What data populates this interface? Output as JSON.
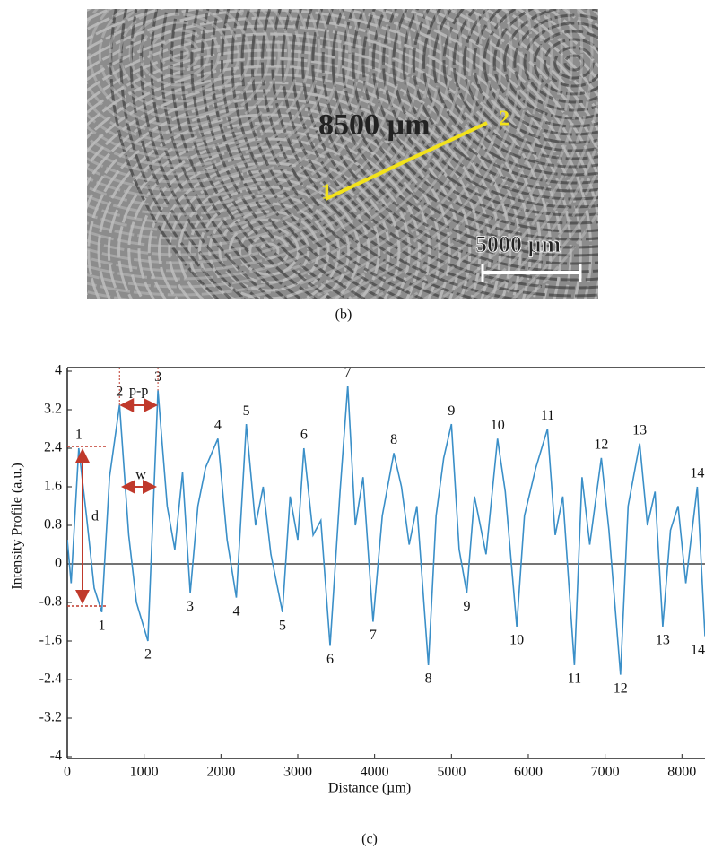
{
  "image": {
    "length_label": "8500 µm",
    "point_1": "1",
    "point_2": "2",
    "scale_label": "5000 µm",
    "caption": "(b)"
  },
  "chart_data": {
    "type": "line",
    "caption": "(c)",
    "x_label": "Distance (µm)",
    "y_label": "Intensity Profile (a.u.)",
    "x": [
      0,
      50,
      150,
      250,
      350,
      450,
      550,
      680,
      800,
      900,
      1050,
      1180,
      1300,
      1400,
      1500,
      1600,
      1700,
      1800,
      1960,
      2080,
      2200,
      2330,
      2450,
      2550,
      2650,
      2800,
      2900,
      3000,
      3080,
      3200,
      3300,
      3420,
      3550,
      3650,
      3750,
      3850,
      3980,
      4100,
      4250,
      4350,
      4450,
      4550,
      4700,
      4800,
      4900,
      5000,
      5100,
      5200,
      5300,
      5450,
      5600,
      5700,
      5850,
      5950,
      6100,
      6250,
      6350,
      6450,
      6600,
      6700,
      6800,
      6950,
      7050,
      7200,
      7300,
      7450,
      7550,
      7650,
      7750,
      7850,
      7950,
      8050,
      8200,
      8300
    ],
    "values": [
      0.5,
      -0.4,
      2.4,
      1.0,
      -0.5,
      -1.0,
      1.8,
      3.3,
      0.6,
      -0.8,
      -1.6,
      3.6,
      1.2,
      0.3,
      1.9,
      -0.6,
      1.2,
      2.0,
      2.6,
      0.5,
      -0.7,
      2.9,
      0.8,
      1.6,
      0.2,
      -1.0,
      1.4,
      0.5,
      2.4,
      0.6,
      0.9,
      -1.7,
      1.5,
      3.7,
      0.8,
      1.8,
      -1.2,
      1.0,
      2.3,
      1.6,
      0.4,
      1.2,
      -2.1,
      1.0,
      2.2,
      2.9,
      0.3,
      -0.6,
      1.4,
      0.2,
      2.6,
      1.5,
      -1.3,
      1.0,
      2.0,
      2.8,
      0.6,
      1.4,
      -2.1,
      1.8,
      0.4,
      2.2,
      0.7,
      -2.3,
      1.2,
      2.5,
      0.8,
      1.5,
      -1.3,
      0.7,
      1.2,
      -0.4,
      1.6,
      -1.5
    ],
    "color": "#3a8fc8",
    "xlim": [
      0,
      8300
    ],
    "xticks": [
      0,
      1000,
      2000,
      3000,
      4000,
      5000,
      6000,
      7000,
      8000
    ],
    "ylim": [
      -4,
      4
    ],
    "yticks": [
      4,
      3.2,
      2.4,
      1.6,
      0.8,
      0,
      -0.8,
      -1.6,
      -2.4,
      -3.2,
      -4
    ],
    "grid": false,
    "annotations": [
      {
        "text": "1",
        "x": 150,
        "y": 2.4
      },
      {
        "text": "2",
        "x": 680,
        "y": 3.3
      },
      {
        "text": "3",
        "x": 1180,
        "y": 3.6
      },
      {
        "text": "4",
        "x": 1960,
        "y": 2.6
      },
      {
        "text": "5",
        "x": 2330,
        "y": 2.9
      },
      {
        "text": "6",
        "x": 3080,
        "y": 2.4
      },
      {
        "text": "7",
        "x": 3650,
        "y": 3.7
      },
      {
        "text": "8",
        "x": 4250,
        "y": 2.3
      },
      {
        "text": "9",
        "x": 5000,
        "y": 2.9
      },
      {
        "text": "10",
        "x": 5600,
        "y": 2.6
      },
      {
        "text": "11",
        "x": 6250,
        "y": 2.8
      },
      {
        "text": "12",
        "x": 6950,
        "y": 2.2
      },
      {
        "text": "13",
        "x": 7450,
        "y": 2.5
      },
      {
        "text": "14",
        "x": 8200,
        "y": 1.6
      },
      {
        "text": "1",
        "x": 450,
        "y": -1.0
      },
      {
        "text": "2",
        "x": 1050,
        "y": -1.6
      },
      {
        "text": "3",
        "x": 1600,
        "y": -0.6
      },
      {
        "text": "4",
        "x": 2200,
        "y": -0.7
      },
      {
        "text": "5",
        "x": 2800,
        "y": -1.0
      },
      {
        "text": "6",
        "x": 3420,
        "y": -1.7
      },
      {
        "text": "7",
        "x": 3980,
        "y": -1.2
      },
      {
        "text": "8",
        "x": 4700,
        "y": -2.1
      },
      {
        "text": "9",
        "x": 5200,
        "y": -0.6
      },
      {
        "text": "10",
        "x": 5850,
        "y": -1.3
      },
      {
        "text": "11",
        "x": 6600,
        "y": -2.1
      },
      {
        "text": "12",
        "x": 7200,
        "y": -2.3
      },
      {
        "text": "13",
        "x": 7750,
        "y": -1.3
      },
      {
        "text": "14",
        "x": 8300,
        "y": -1.5
      }
    ],
    "measure_labels": {
      "peak_to_peak": "p-p",
      "width": "w",
      "depth": "d"
    }
  }
}
